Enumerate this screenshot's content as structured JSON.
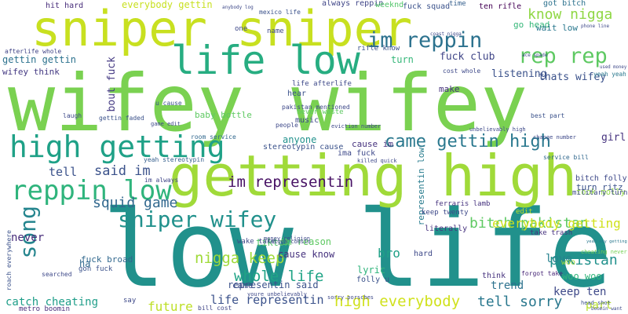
{
  "word_cloud": {
    "background": "#ffffff",
    "words": [
      {
        "text": "wifey wifey",
        "color": "#7ad151"
      },
      {
        "text": "low life",
        "color": "#21918c"
      },
      {
        "text": "getting high",
        "color": "#a0da39"
      },
      {
        "text": "sniper sniper",
        "color": "#c8e020"
      },
      {
        "text": "life low",
        "color": "#27ad81"
      },
      {
        "text": "high getting",
        "color": "#1fa187"
      },
      {
        "text": "reppin low",
        "color": "#2fb47c"
      },
      {
        "text": "sniper wifey",
        "color": "#21918c"
      },
      {
        "text": "came gettin high",
        "color": "#2a788e"
      },
      {
        "text": "song",
        "color": "#25858e"
      },
      {
        "text": "im reppin",
        "color": "#2c728e"
      },
      {
        "text": "rep rep",
        "color": "#5ec962"
      },
      {
        "text": "know nigga",
        "color": "#8fd744"
      },
      {
        "text": "said im",
        "color": "#3b528b"
      },
      {
        "text": "im representin",
        "color": "#471164"
      },
      {
        "text": "squid game",
        "color": "#31688e"
      },
      {
        "text": "bitch pakistan",
        "color": "#5ec962"
      },
      {
        "text": "nigga keep",
        "color": "#a0da39"
      },
      {
        "text": "whole life",
        "color": "#20a486"
      },
      {
        "text": "high everybody",
        "color": "#d0e11c"
      },
      {
        "text": "everybody getting",
        "color": "#d0e11c"
      },
      {
        "text": "pakistan",
        "color": "#21918c"
      },
      {
        "text": "tell sorry",
        "color": "#2a788e"
      },
      {
        "text": "life representin",
        "color": "#3b528b"
      },
      {
        "text": "future",
        "color": "#bddf26"
      },
      {
        "text": "catch cheating",
        "color": "#1f9e89"
      },
      {
        "text": "keep ten",
        "color": "#3e4989"
      },
      {
        "text": "part",
        "color": "#b5de2b"
      },
      {
        "text": "woo woo",
        "color": "#31b57b"
      },
      {
        "text": "everybody gettin",
        "color": "#c8e020"
      },
      {
        "text": "fuck club",
        "color": "#404688"
      },
      {
        "text": "listening",
        "color": "#3b528b"
      },
      {
        "text": "thats wifey",
        "color": "#3b528b"
      },
      {
        "text": "gettin gettin",
        "color": "#2c728e"
      },
      {
        "text": "wifey think",
        "color": "#443983"
      },
      {
        "text": "bout fuck",
        "color": "#443983"
      },
      {
        "text": "tell",
        "color": "#3b528b"
      },
      {
        "text": "never",
        "color": "#472c7a"
      },
      {
        "text": "bro",
        "color": "#1fa187"
      },
      {
        "text": "love",
        "color": "#26828e"
      },
      {
        "text": "trend",
        "color": "#2c728e"
      },
      {
        "text": "anyone",
        "color": "#21918c"
      },
      {
        "text": "lyric",
        "color": "#2fb47c"
      },
      {
        "text": "cause im",
        "color": "#46327e"
      },
      {
        "text": "came",
        "color": "#3e4989"
      },
      {
        "text": "turn",
        "color": "#35b779"
      },
      {
        "text": "girl",
        "color": "#46337f"
      },
      {
        "text": "go head",
        "color": "#35b779"
      },
      {
        "text": "wait low",
        "color": "#2a788e"
      },
      {
        "text": "got bitch",
        "color": "#2c728e"
      },
      {
        "text": "ten rifle",
        "color": "#440154"
      },
      {
        "text": "hit hard",
        "color": "#472c7a"
      },
      {
        "text": "always reppin",
        "color": "#404688"
      },
      {
        "text": "mexico life",
        "color": "#3b528b"
      },
      {
        "text": "weeknd",
        "color": "#52c569"
      },
      {
        "text": "fuck squad",
        "color": "#3b528b"
      },
      {
        "text": "time",
        "color": "#355f8d"
      },
      {
        "text": "afterlife whole",
        "color": "#414487"
      },
      {
        "text": "yeah yeah",
        "color": "#2a788e"
      },
      {
        "text": "woo",
        "color": "#9bd93c"
      },
      {
        "text": "one",
        "color": "#3e4989"
      },
      {
        "text": "name",
        "color": "#3e4989"
      },
      {
        "text": "stereotypin cause",
        "color": "#3b528b"
      },
      {
        "text": "ima fuck",
        "color": "#3e4989"
      },
      {
        "text": "yeah stereotypin",
        "color": "#355f8d"
      },
      {
        "text": "im always",
        "color": "#404688"
      },
      {
        "text": "representin low",
        "color": "#287c8e"
      },
      {
        "text": "edit",
        "color": "#bddf26"
      },
      {
        "text": "ferraris lamb",
        "color": "#46337f"
      },
      {
        "text": "took molly",
        "color": "#90d743"
      },
      {
        "text": "bitch folly",
        "color": "#3e4989"
      },
      {
        "text": "turn ritz",
        "color": "#3b528b"
      },
      {
        "text": "military turn",
        "color": "#3e4989"
      },
      {
        "text": "tiktok",
        "color": "#52c569"
      },
      {
        "text": "im reason",
        "color": "#5ec962"
      },
      {
        "text": "cause know",
        "color": "#46327e"
      },
      {
        "text": "representin said",
        "color": "#3b528b"
      },
      {
        "text": "fuck broad",
        "color": "#31688e"
      },
      {
        "text": "wake take",
        "color": "#3e4989"
      },
      {
        "text": "music",
        "color": "#3e4989"
      },
      {
        "text": "hear",
        "color": "#3b528b"
      },
      {
        "text": "make",
        "color": "#46327e"
      },
      {
        "text": "baby bottle",
        "color": "#5ec962"
      },
      {
        "text": "room service",
        "color": "#31688e"
      },
      {
        "text": "cheating never",
        "color": "#75d054"
      },
      {
        "text": "yeah sey getting",
        "color": "#2a788e"
      },
      {
        "text": "think",
        "color": "#46327e"
      },
      {
        "text": "forgot take",
        "color": "#482878"
      },
      {
        "text": "ha",
        "color": "#31688e"
      },
      {
        "text": "gon fuck",
        "color": "#3b528b"
      },
      {
        "text": "hard",
        "color": "#3e4989"
      },
      {
        "text": "folly u",
        "color": "#3b528b"
      },
      {
        "text": "keep twenty",
        "color": "#3e4989"
      },
      {
        "text": "literally",
        "color": "#46327e"
      },
      {
        "text": "take trash",
        "color": "#46327e"
      },
      {
        "text": "rifle know",
        "color": "#3b528b"
      },
      {
        "text": "life afterlife",
        "color": "#3e4989"
      },
      {
        "text": "pakistan mentioned",
        "color": "#3e4989"
      },
      {
        "text": "never waste",
        "color": "#5ec962"
      },
      {
        "text": "laugh",
        "color": "#3e4989"
      },
      {
        "text": "gettin faded",
        "color": "#3b528b"
      },
      {
        "text": "metro boomin",
        "color": "#472c7a"
      },
      {
        "text": "roach everywhere",
        "color": "#3b528b"
      },
      {
        "text": "say",
        "color": "#3e4989"
      },
      {
        "text": "searched",
        "color": "#3e4989"
      },
      {
        "text": "people",
        "color": "#3e4989"
      },
      {
        "text": "cost whole",
        "color": "#3e4989"
      },
      {
        "text": "bill cost",
        "color": "#404688"
      },
      {
        "text": "service bill",
        "color": "#31688e"
      },
      {
        "text": "u cause",
        "color": "#3b528b"
      },
      {
        "text": "best part",
        "color": "#3b528b"
      },
      {
        "text": "change number",
        "color": "#3e4989"
      },
      {
        "text": "game edit",
        "color": "#3e4989"
      },
      {
        "text": "head shot",
        "color": "#3b528b"
      },
      {
        "text": "killed quick",
        "color": "#3e4989"
      },
      {
        "text": "eviction number",
        "color": "#3e4989"
      },
      {
        "text": "unbelievably high",
        "color": "#3e4989"
      },
      {
        "text": "youre unbelievably",
        "color": "#3e4989"
      },
      {
        "text": "sorry porsches",
        "color": "#3e4989"
      },
      {
        "text": "money religion",
        "color": "#3e4989"
      },
      {
        "text": "nigga cousin",
        "color": "#3e4989"
      },
      {
        "text": "anybody log",
        "color": "#3e4989"
      },
      {
        "text": "coast nigga",
        "color": "#3e4989"
      },
      {
        "text": "phone line",
        "color": "#3e4989"
      },
      {
        "text": "ace spade",
        "color": "#3e4989"
      },
      {
        "text": "used money",
        "color": "#3e4989"
      },
      {
        "text": "boomin want",
        "color": "#3e4989"
      }
    ]
  }
}
